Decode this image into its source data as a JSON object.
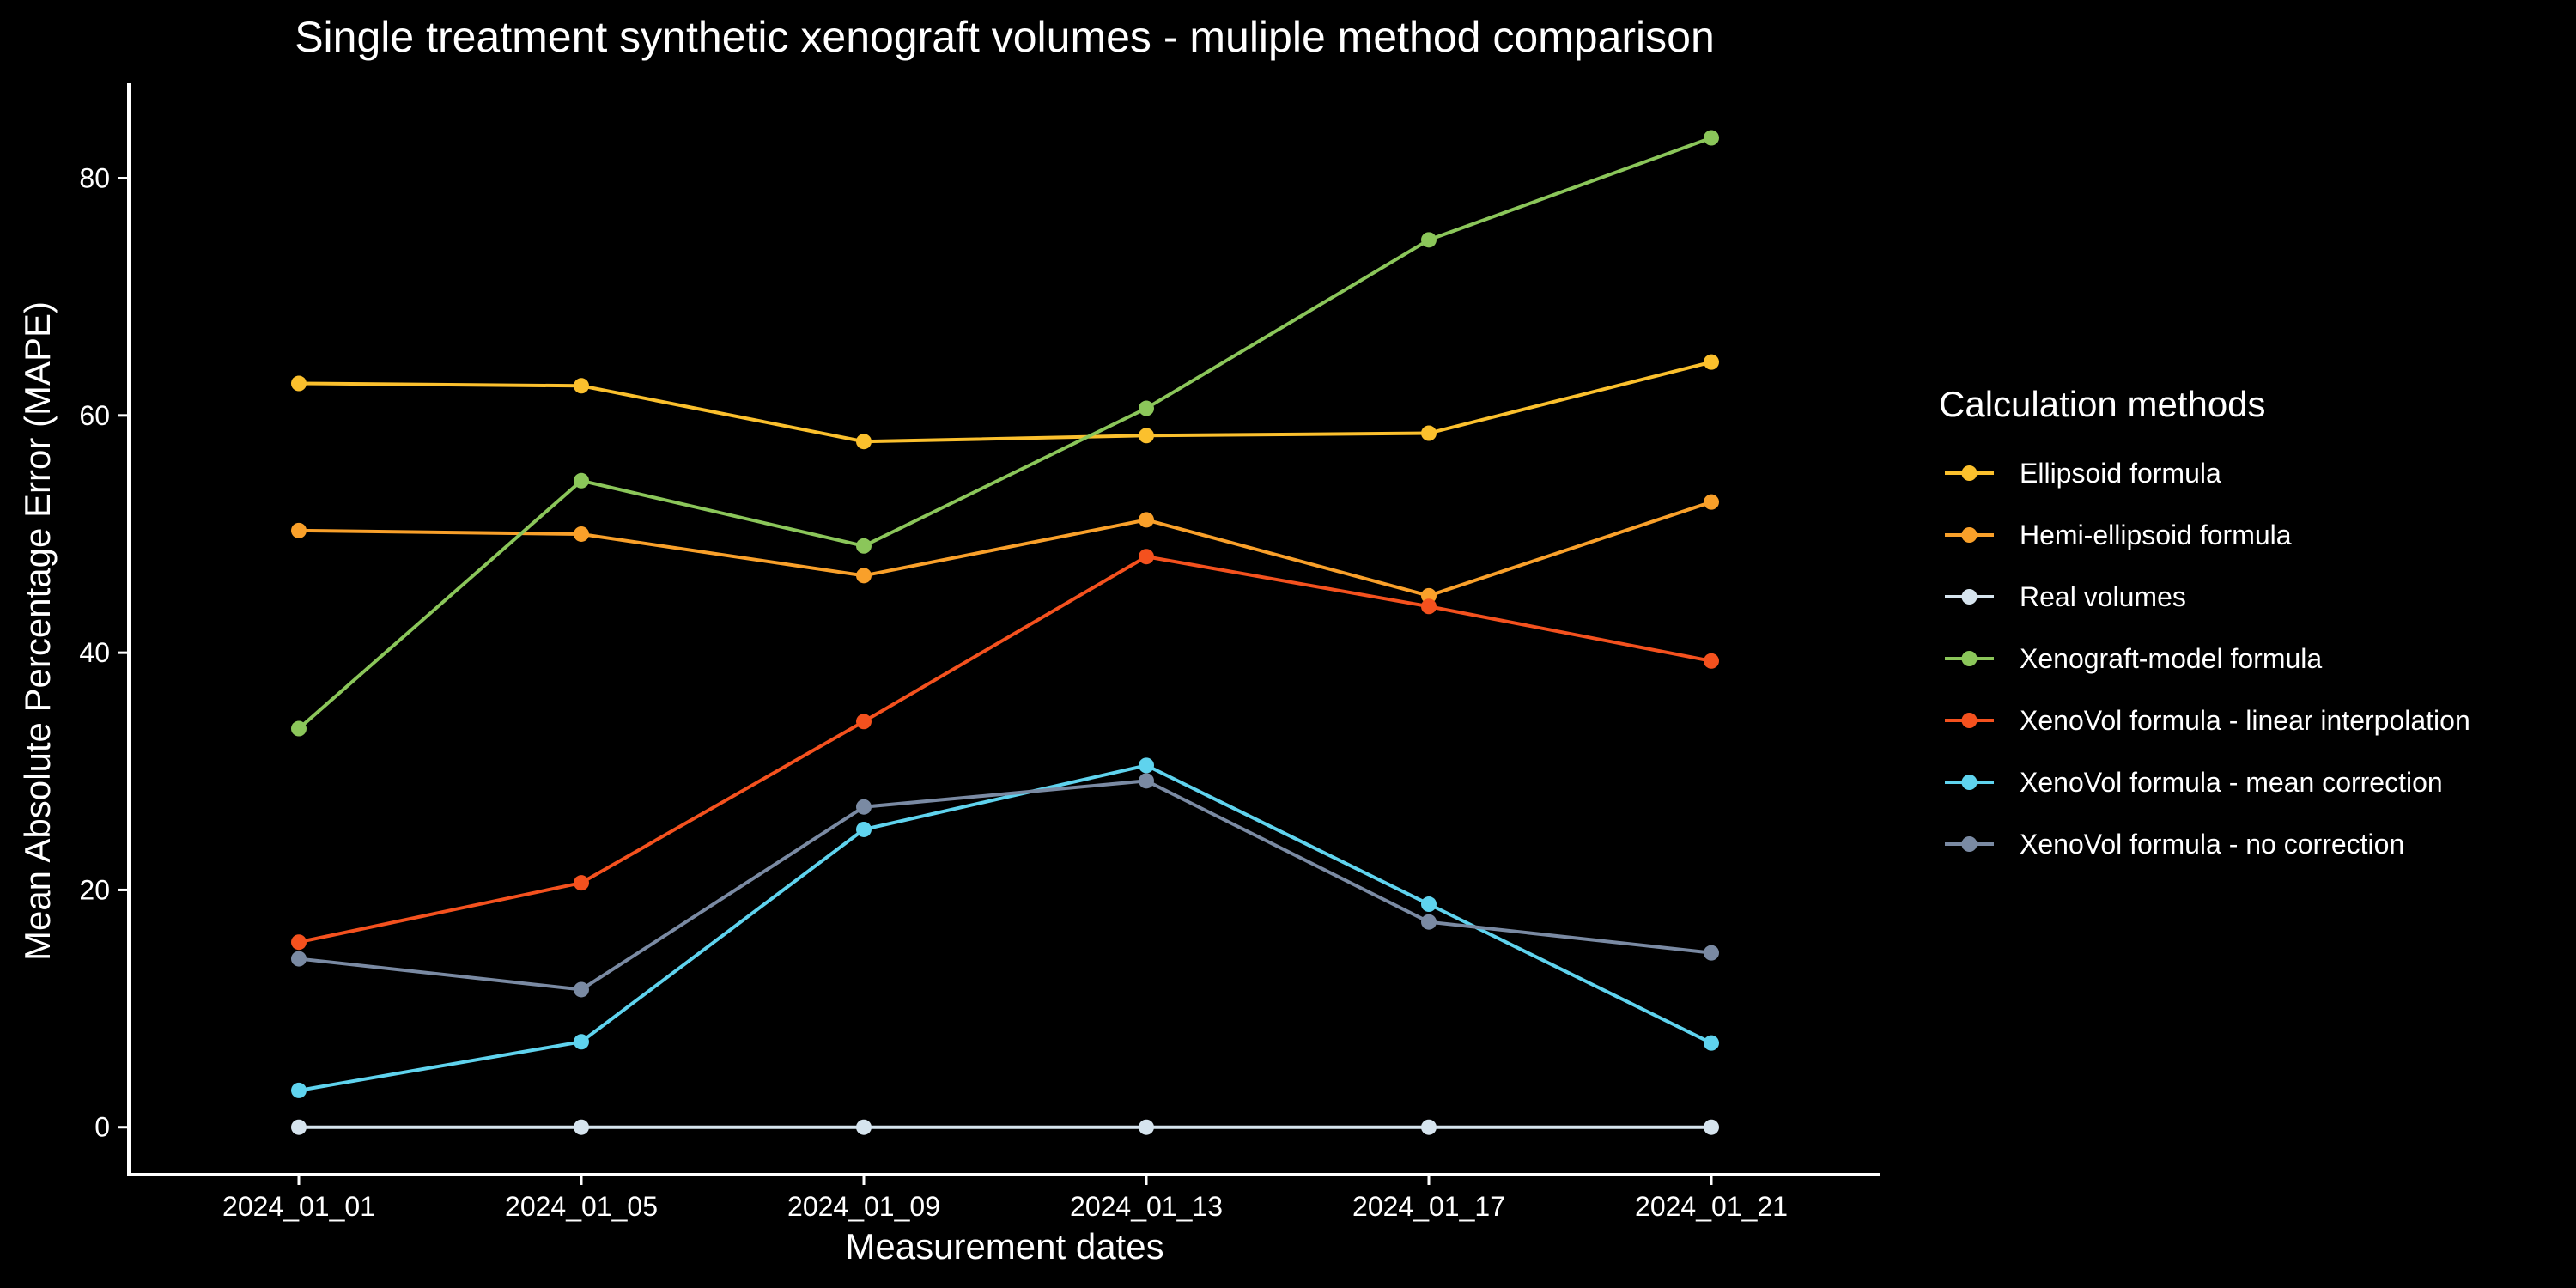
{
  "chart_data": {
    "type": "line",
    "title": "Single treatment synthetic xenograft volumes - muliple method comparison",
    "xlabel": "Measurement dates",
    "ylabel": "Mean Absolute Percentage Error (MAPE)",
    "x": [
      "2024_01_01",
      "2024_01_05",
      "2024_01_09",
      "2024_01_13",
      "2024_01_17",
      "2024_01_21"
    ],
    "yticks": [
      0,
      20,
      40,
      60,
      80
    ],
    "ylim": [
      -4,
      88
    ],
    "grid": false,
    "legend_title": "Calculation methods",
    "legend_position": "right",
    "series": [
      {
        "name": "Ellipsoid formula",
        "color": "#FBC02D",
        "values": [
          62.7,
          62.5,
          57.8,
          58.3,
          58.5,
          64.5
        ]
      },
      {
        "name": "Hemi-ellipsoid formula",
        "color": "#F9A02A",
        "values": [
          50.3,
          50.0,
          46.5,
          51.2,
          44.8,
          52.7
        ]
      },
      {
        "name": "Real volumes",
        "color": "#D6E4EE",
        "values": [
          0,
          0,
          0,
          0,
          0,
          0
        ]
      },
      {
        "name": "Xenograft-model formula",
        "color": "#8BC65A",
        "values": [
          33.6,
          54.5,
          49.0,
          60.6,
          74.8,
          83.4
        ]
      },
      {
        "name": "XenoVol formula - linear interpolation",
        "color": "#F4511E",
        "values": [
          15.6,
          20.6,
          34.2,
          48.1,
          43.9,
          39.3
        ]
      },
      {
        "name": "XenoVol formula - mean correction",
        "color": "#5FD3EE",
        "values": [
          3.1,
          7.2,
          25.1,
          30.5,
          18.8,
          7.1
        ]
      },
      {
        "name": "XenoVol formula - no correction",
        "color": "#7A8AA3",
        "values": [
          14.2,
          11.6,
          27.0,
          29.2,
          17.3,
          14.7
        ]
      }
    ]
  }
}
